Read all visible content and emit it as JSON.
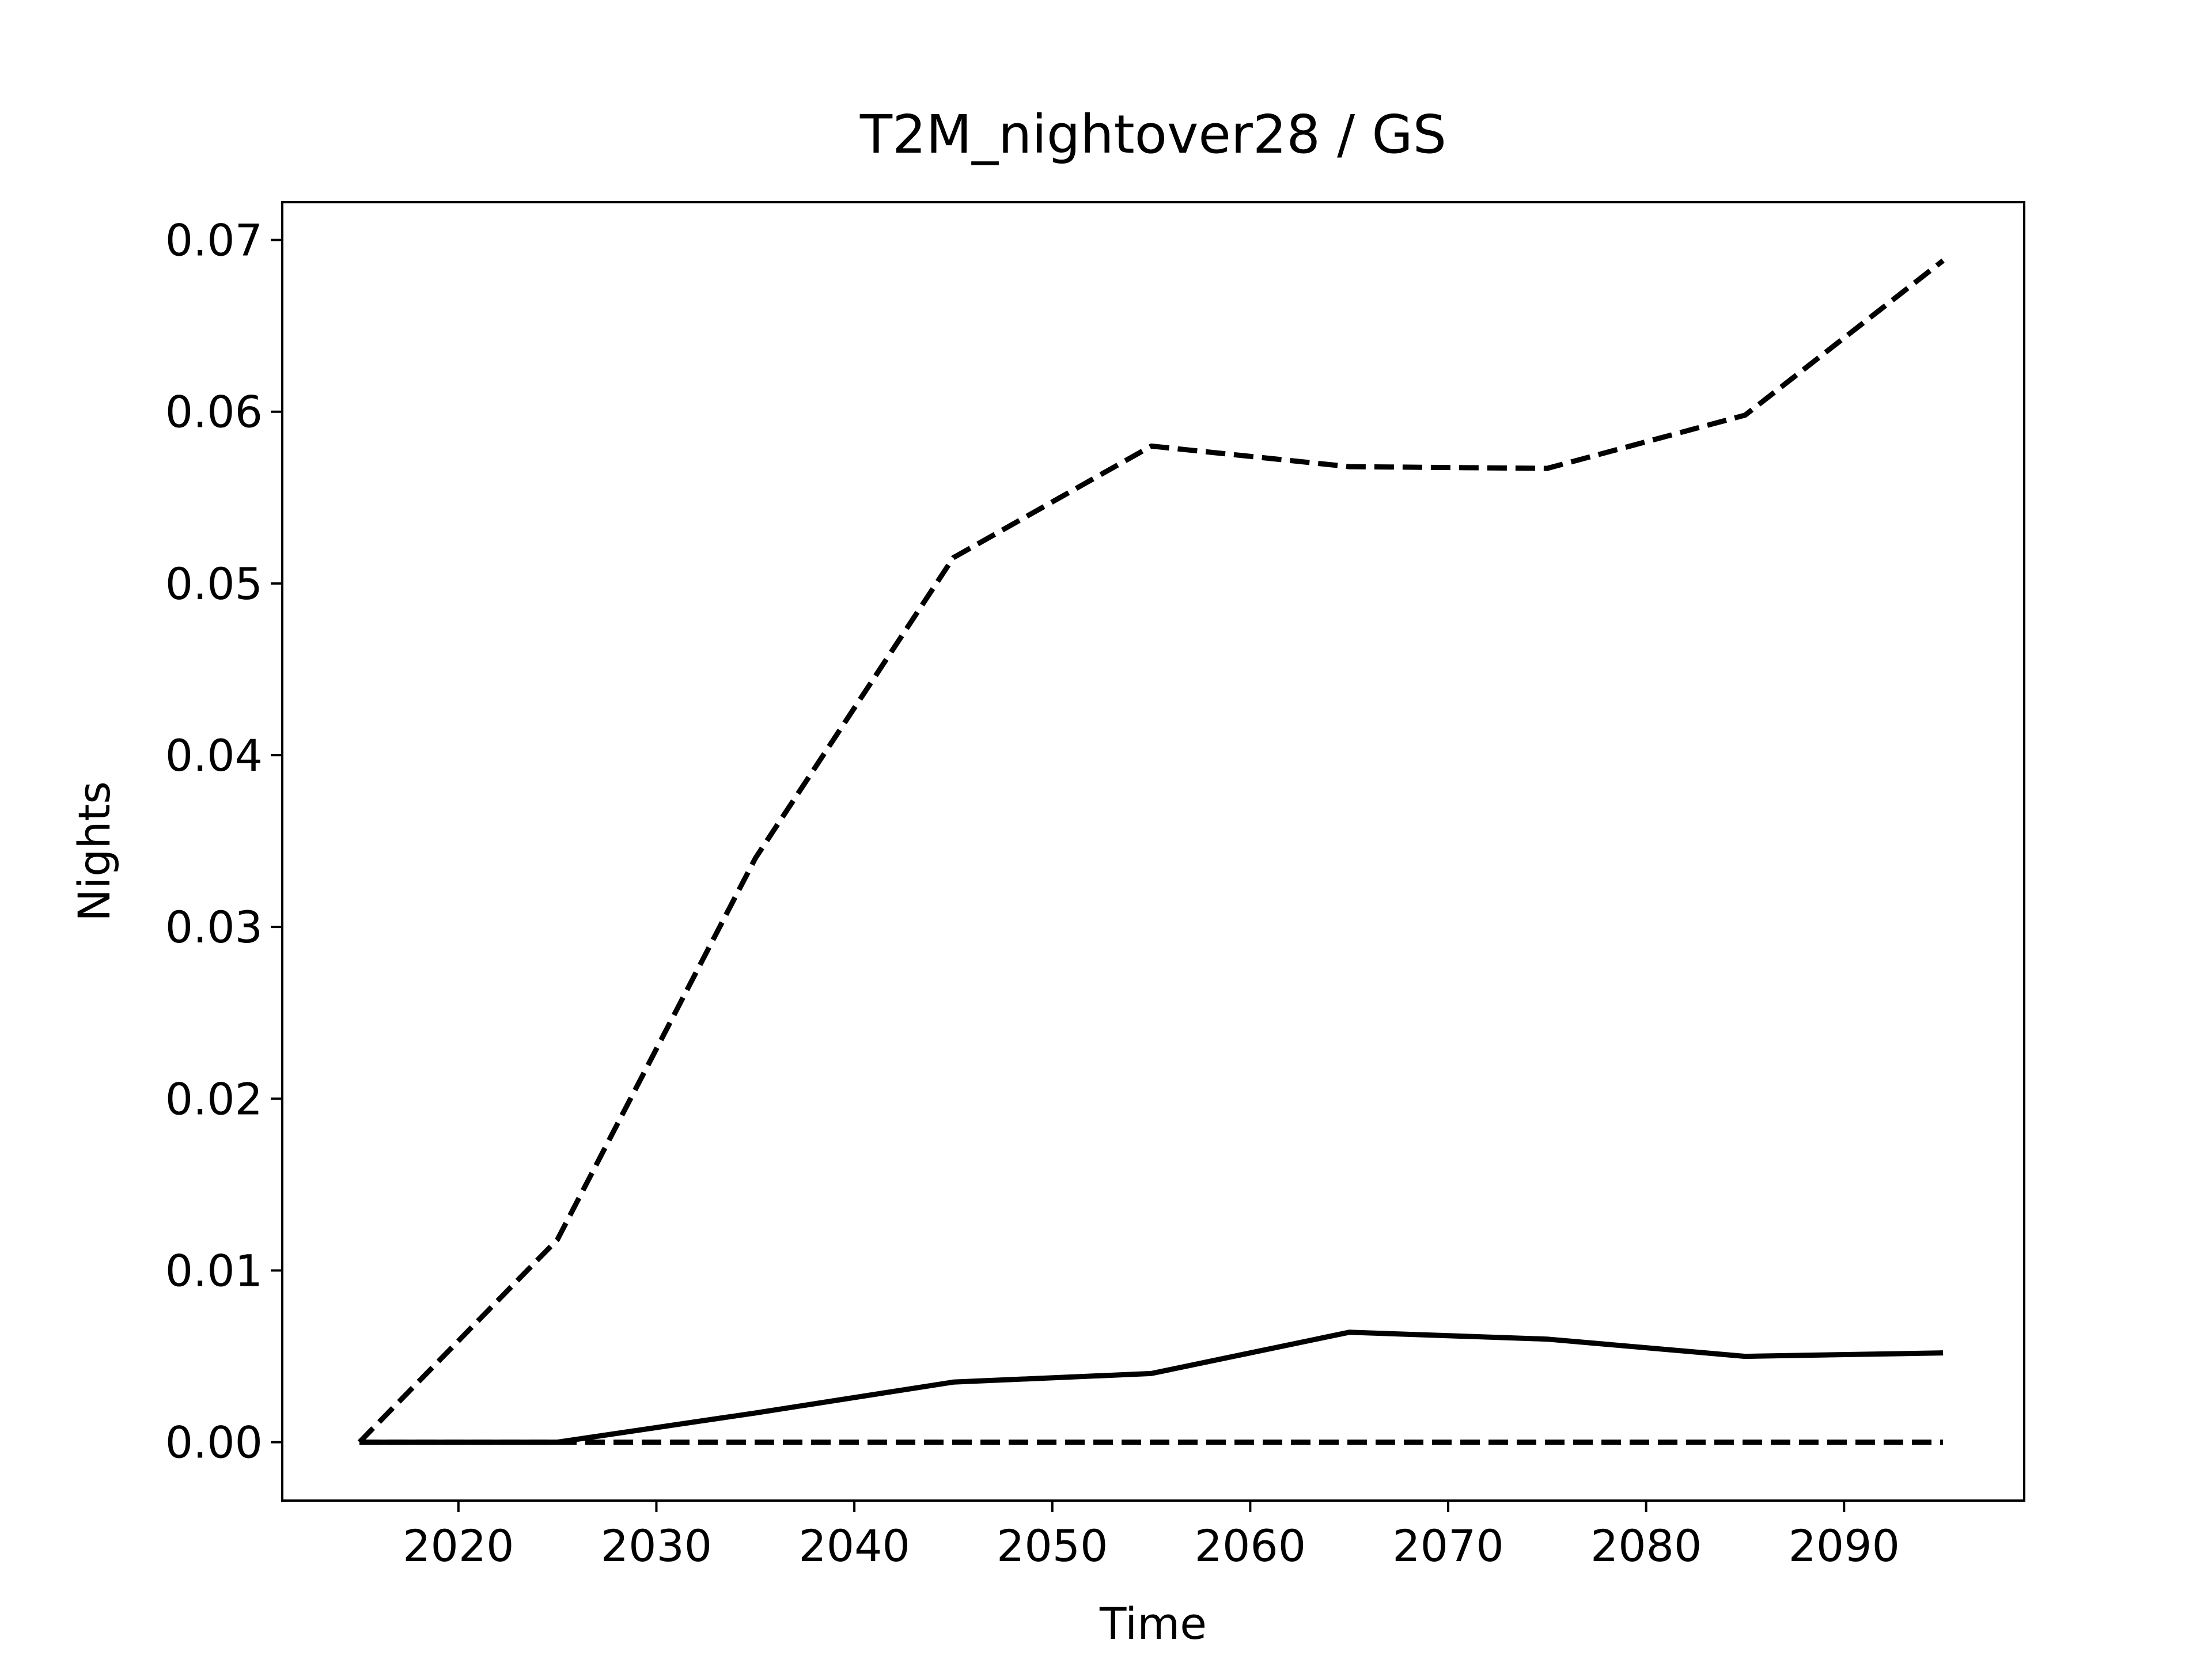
{
  "chart_data": {
    "type": "line",
    "title": "T2M_nightover28 / GS",
    "x_label": "Time",
    "y_label": "Nights",
    "x": [
      2015,
      2025,
      2035,
      2045,
      2055,
      2065,
      2075,
      2085,
      2095
    ],
    "series": [
      {
        "color": "#000000",
        "linestyle": "dashed",
        "values": [
          0,
          0.0118,
          0.034,
          0.0515,
          0.058,
          0.0568,
          0.0567,
          0.0598,
          0.0688
        ]
      },
      {
        "color": "#000000",
        "linestyle": "solid",
        "values": [
          0,
          0,
          0.0017,
          0.0035,
          0.004,
          0.0064,
          0.006,
          0.005,
          0.0052
        ]
      },
      {
        "color": "#000000",
        "linestyle": "dashed",
        "values": [
          0,
          0,
          0,
          0,
          0,
          0,
          0,
          0,
          0
        ]
      }
    ],
    "xlim": [
      2011.1,
      2099.1
    ],
    "xticks": [
      2020,
      2030,
      2040,
      2050,
      2060,
      2070,
      2080,
      2090
    ],
    "ylim": [
      -0.0034,
      0.0722
    ],
    "yticks": [
      {
        "value": 0,
        "label": "0.00"
      },
      0.01,
      0.02,
      0.03,
      0.04,
      0.05,
      0.06,
      0.07
    ],
    "grid": false
  }
}
